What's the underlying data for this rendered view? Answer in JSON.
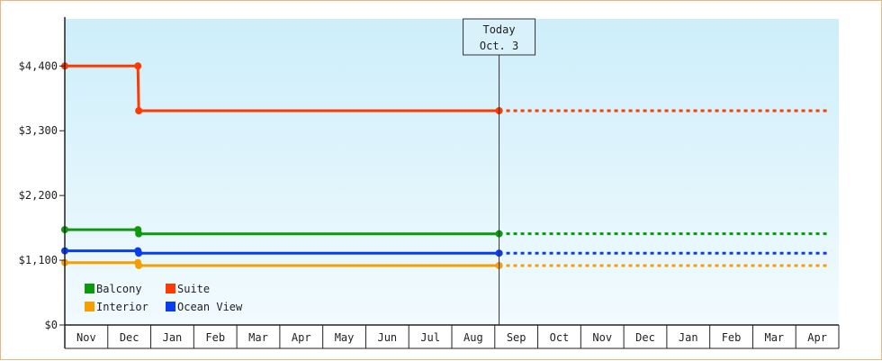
{
  "chart_data": {
    "type": "line",
    "title": "",
    "xlabel": "",
    "ylabel": "",
    "x_ticks": [
      "Nov",
      "Dec",
      "Jan",
      "Feb",
      "Mar",
      "Apr",
      "May",
      "Jun",
      "Jul",
      "Aug",
      "Sep",
      "Oct",
      "Nov",
      "Dec",
      "Jan",
      "Feb",
      "Mar",
      "Apr"
    ],
    "y_ticks": [
      "$0",
      "$1,100",
      "$2,200",
      "$3,300",
      "$4,400"
    ],
    "y_tick_values": [
      0,
      1100,
      2200,
      3300,
      4400
    ],
    "ylim": [
      0,
      5200
    ],
    "today": {
      "line1": "Today",
      "line2": "Oct. 3",
      "x": 10.1
    },
    "grid": false,
    "legend_position": "bottom-left",
    "background": {
      "top": "#cdeefa",
      "bottom": "#f2fbfe"
    },
    "series": [
      {
        "name": "Suite",
        "color": "#ff3a00",
        "points": [
          [
            0,
            4400
          ],
          [
            1.7,
            4400
          ],
          [
            1.72,
            3640
          ],
          [
            10.1,
            3640
          ]
        ],
        "projected_to": 17.8
      },
      {
        "name": "Balcony",
        "color": "#0c9a0c",
        "points": [
          [
            0,
            1620
          ],
          [
            1.7,
            1620
          ],
          [
            1.72,
            1550
          ],
          [
            10.1,
            1550
          ]
        ],
        "projected_to": 17.8
      },
      {
        "name": "Ocean View",
        "color": "#0a3cf0",
        "points": [
          [
            0,
            1260
          ],
          [
            1.7,
            1260
          ],
          [
            1.72,
            1220
          ],
          [
            10.1,
            1220
          ]
        ],
        "projected_to": 17.8
      },
      {
        "name": "Interior",
        "color": "#f5a000",
        "points": [
          [
            0,
            1060
          ],
          [
            1.7,
            1060
          ],
          [
            1.72,
            1010
          ],
          [
            10.1,
            1010
          ]
        ],
        "projected_to": 17.8
      }
    ],
    "legend": [
      {
        "name": "Balcony",
        "color": "#0c9a0c"
      },
      {
        "name": "Suite",
        "color": "#ff3a00"
      },
      {
        "name": "Interior",
        "color": "#f5a000"
      },
      {
        "name": "Ocean View",
        "color": "#0a3cf0"
      }
    ]
  }
}
